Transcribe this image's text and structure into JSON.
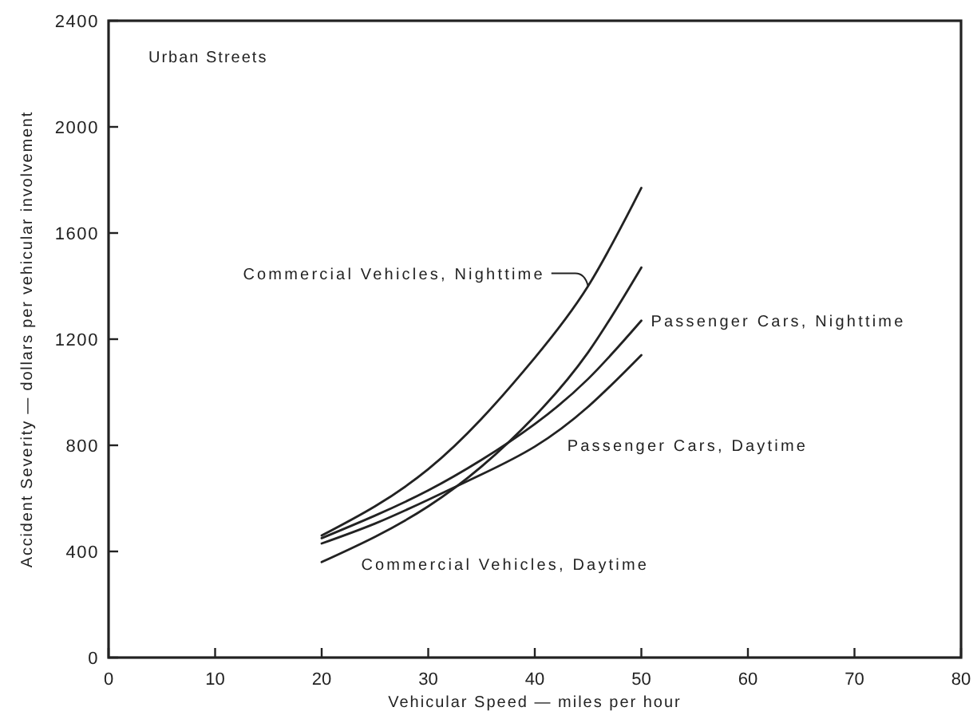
{
  "chart_data": {
    "type": "line",
    "xlabel": "Vehicular Speed — miles per hour",
    "ylabel": "Accident Severity — dollars per vehicular involvement",
    "annotations": [
      "Urban Streets"
    ],
    "x": [
      20,
      25,
      30,
      35,
      40,
      45,
      50
    ],
    "series": [
      {
        "name": "Commercial Vehicles, Nighttime",
        "color": "#222222",
        "values": [
          460,
          570,
          710,
          900,
          1130,
          1400,
          1770
        ]
      },
      {
        "name": "Passenger Cars, Nighttime",
        "color": "#222222",
        "values": [
          450,
          535,
          630,
          745,
          880,
          1050,
          1270
        ]
      },
      {
        "name": "Passenger Cars, Daytime",
        "color": "#222222",
        "values": [
          430,
          505,
          595,
          690,
          795,
          945,
          1140
        ]
      },
      {
        "name": "Commercial Vehicles, Daytime",
        "color": "#222222",
        "values": [
          360,
          455,
          570,
          720,
          910,
          1150,
          1470
        ]
      }
    ],
    "xlim": [
      0,
      80
    ],
    "xticks": [
      0,
      10,
      20,
      30,
      40,
      50,
      60,
      70,
      80
    ],
    "ylim": [
      0,
      2400
    ],
    "yticks": [
      0,
      400,
      800,
      1200,
      1600,
      2000,
      2400
    ]
  }
}
